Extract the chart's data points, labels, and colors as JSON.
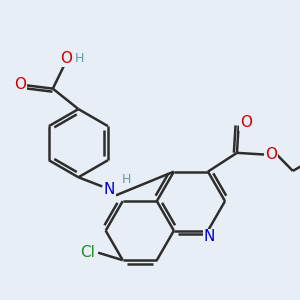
{
  "bg_color": "#e8eef5",
  "bond_color": "#2d2d2d",
  "bond_width": 1.8,
  "atom_colors": {
    "O": "#cc0000",
    "N": "#0000cc",
    "Cl": "#228b22",
    "H": "#5f9ea0",
    "C": "#2d2d2d"
  },
  "font_size_atom": 11,
  "font_size_h": 9
}
